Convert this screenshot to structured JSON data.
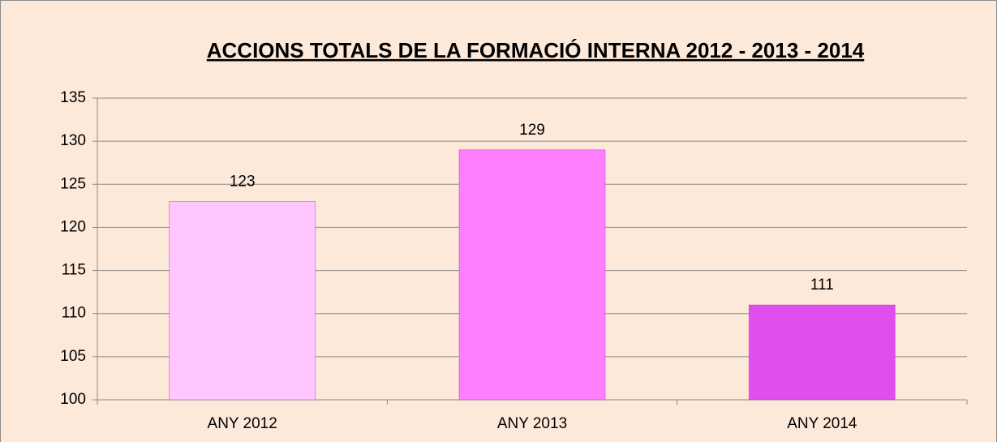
{
  "chart_data": {
    "type": "bar",
    "title": "ACCIONS TOTALS DE LA FORMACIÓ INTERNA 2012 - 2013 - 2014",
    "categories": [
      "ANY 2012",
      "ANY 2013",
      "ANY 2014"
    ],
    "values": [
      123,
      129,
      111
    ],
    "colors": [
      "#ffc6ff",
      "#ff80ff",
      "#e04ef0"
    ],
    "ylim": [
      100,
      135
    ],
    "yticks": [
      100,
      105,
      110,
      115,
      120,
      125,
      130,
      135
    ],
    "grid": true
  }
}
